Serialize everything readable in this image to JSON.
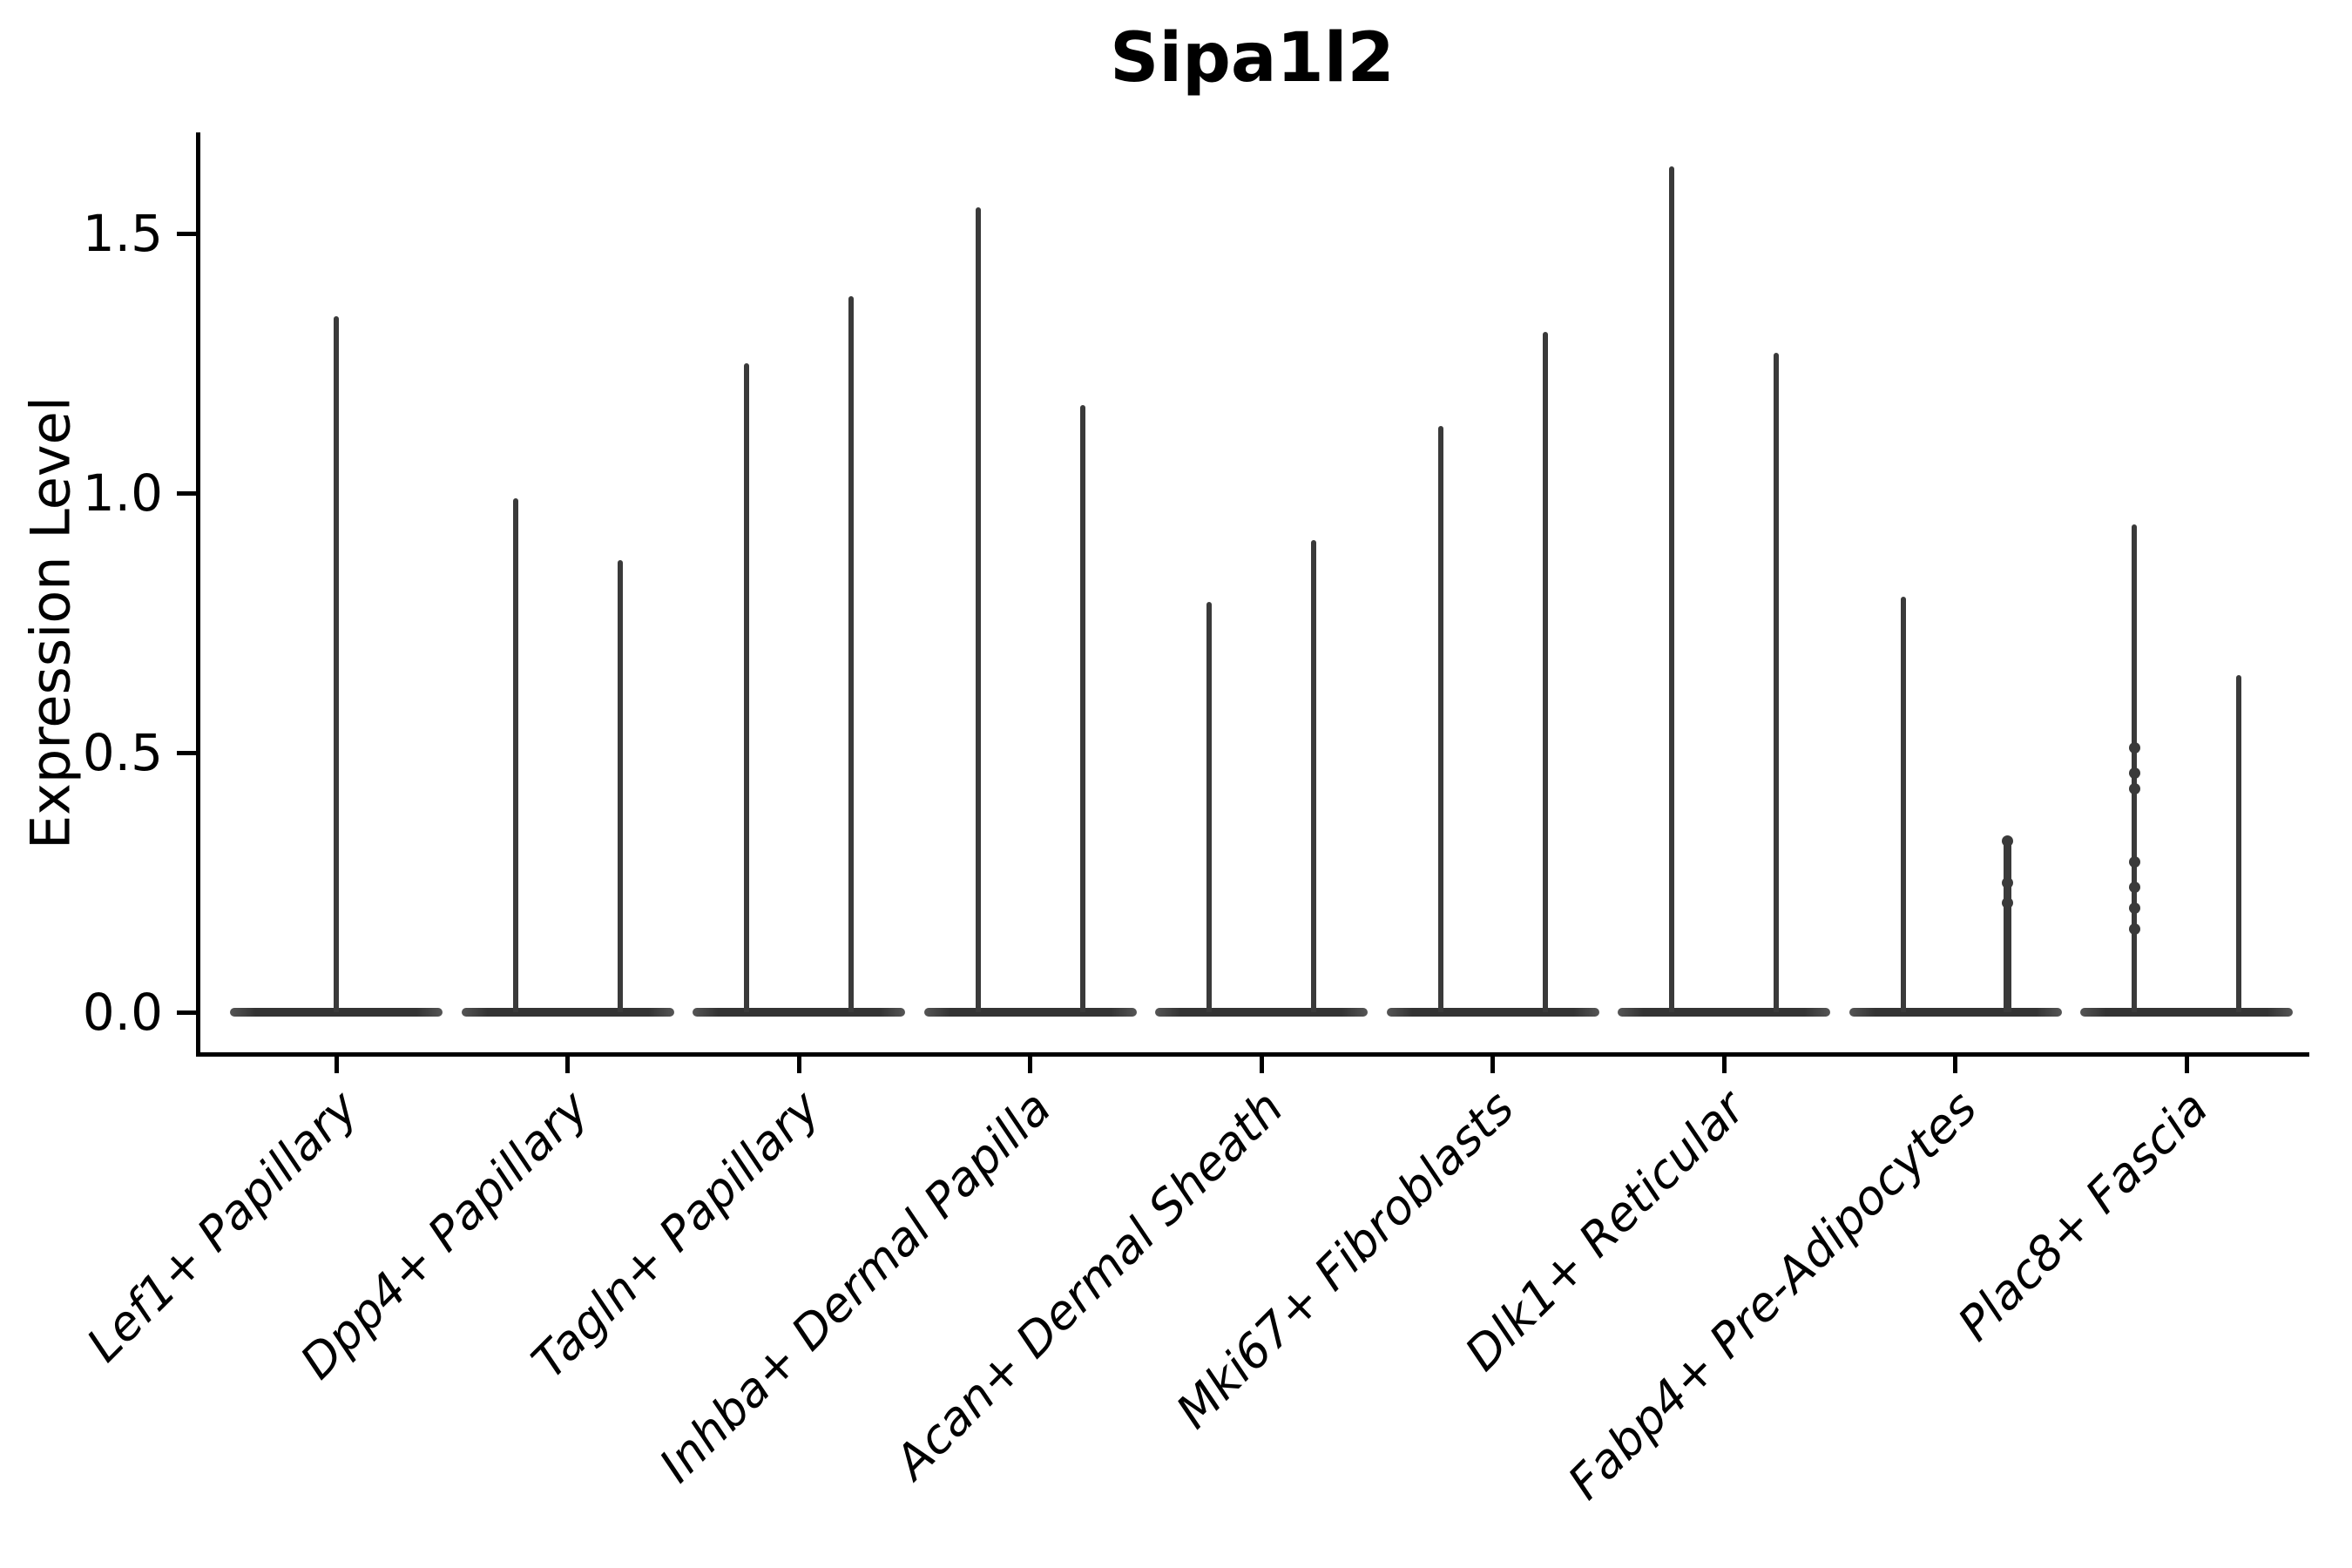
{
  "chart_data": {
    "type": "violin",
    "title": "Sipa1l2",
    "xlabel": "",
    "ylabel": "Expression Level",
    "ylim": [
      -0.08,
      1.7
    ],
    "yticks": [
      0.0,
      0.5,
      1.0,
      1.5
    ],
    "ytick_labels": [
      "0.0",
      "0.5",
      "1.0",
      "1.5"
    ],
    "grid": false,
    "legend": false,
    "background": "#ffffff",
    "violin_color": "#3a3a3a",
    "axis_color": "#000000",
    "description": "Violin plot of Sipa1l2 expression per fibroblast cluster; each cluster shows paired violins whose mass is collapsed at 0 (flat body) with a thin spike rising to the maximum expression value.",
    "categories": [
      "Lef1+ Papillary",
      "Dpp4+ Papillary",
      "Tagln+ Papillary",
      "Inhba+ Dermal Papilla",
      "Acan+ Dermal Sheath",
      "Mki67+ Fibroblasts",
      "Dlk1+ Reticular",
      "Fabp4+ Pre-Adipocytes",
      "Plac8+ Fascia"
    ],
    "groups": [
      {
        "category": "Lef1+ Papillary",
        "violins": [
          {
            "offset": "center",
            "body_value": 0,
            "max": 1.34,
            "dots": []
          }
        ]
      },
      {
        "category": "Dpp4+ Papillary",
        "violins": [
          {
            "offset": "left",
            "body_value": 0,
            "max": 0.99,
            "dots": []
          },
          {
            "offset": "right",
            "body_value": 0,
            "max": 0.87,
            "dots": []
          }
        ]
      },
      {
        "category": "Tagln+ Papillary",
        "violins": [
          {
            "offset": "left",
            "body_value": 0,
            "max": 1.25,
            "dots": []
          },
          {
            "offset": "right",
            "body_value": 0,
            "max": 1.38,
            "dots": []
          }
        ]
      },
      {
        "category": "Inhba+ Dermal Papilla",
        "violins": [
          {
            "offset": "left",
            "body_value": 0,
            "max": 1.55,
            "dots": []
          },
          {
            "offset": "right",
            "body_value": 0,
            "max": 1.17,
            "dots": []
          }
        ]
      },
      {
        "category": "Acan+ Dermal Sheath",
        "violins": [
          {
            "offset": "left",
            "body_value": 0,
            "max": 0.79,
            "dots": []
          },
          {
            "offset": "right",
            "body_value": 0,
            "max": 0.91,
            "dots": []
          }
        ]
      },
      {
        "category": "Mki67+ Fibroblasts",
        "violins": [
          {
            "offset": "left",
            "body_value": 0,
            "max": 1.13,
            "dots": []
          },
          {
            "offset": "right",
            "body_value": 0,
            "max": 1.31,
            "dots": []
          }
        ]
      },
      {
        "category": "Dlk1+ Reticular",
        "violins": [
          {
            "offset": "left",
            "body_value": 0,
            "max": 1.63,
            "dots": []
          },
          {
            "offset": "right",
            "body_value": 0,
            "max": 1.27,
            "dots": []
          }
        ]
      },
      {
        "category": "Fabp4+ Pre-Adipocytes",
        "violins": [
          {
            "offset": "left",
            "body_value": 0,
            "max": 0.8,
            "dots": []
          },
          {
            "offset": "right",
            "body_value": 0,
            "max": 0.33,
            "dots": [
              0.33,
              0.25,
              0.21
            ]
          }
        ]
      },
      {
        "category": "Plac8+ Fascia",
        "violins": [
          {
            "offset": "left",
            "body_value": 0,
            "max": 0.94,
            "dots": [
              0.51,
              0.46,
              0.43,
              0.29,
              0.24,
              0.2,
              0.16
            ]
          },
          {
            "offset": "right",
            "body_value": 0,
            "max": 0.65,
            "dots": []
          }
        ]
      }
    ]
  }
}
